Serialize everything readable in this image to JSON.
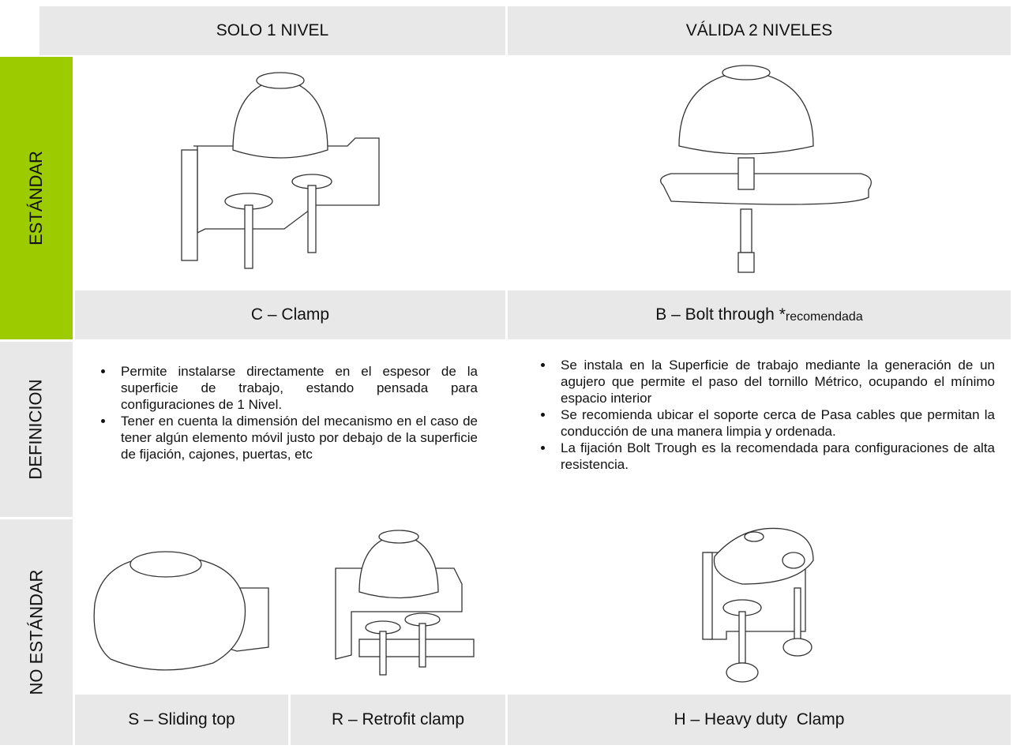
{
  "header": {
    "columns": [
      "SOLO 1 NIVEL",
      "VÁLIDA 2 NIVELES"
    ]
  },
  "rows": [
    {
      "label": "ESTÁNDAR",
      "captions": [
        "C – Clamp",
        "B – Bolt through *"
      ],
      "caption_note": "recomendada"
    },
    {
      "label": "DEFINICION",
      "bullets": [
        [
          "Permite instalarse directamente en el espesor de la superficie de trabajo, estando pensada para configuraciones de 1 Nivel.",
          "Tener en cuenta la dimensión del mecanismo en el caso de tener algún elemento móvil justo por debajo de la superficie de fijación, cajones, puertas, etc"
        ],
        [
          "Se instala en la Superficie de trabajo mediante la generación de un agujero que permite el paso del tornillo Métrico, ocupando el mínimo espacio interior",
          "Se recomienda ubicar el soporte cerca de Pasa cables que permitan la conducción de una manera limpia y ordenada.",
          "La fijación Bolt Trough es la recomendada para configuraciones de alta resistencia."
        ]
      ]
    },
    {
      "label": "NO ESTÁNDAR",
      "captions": [
        "S – Sliding top",
        "R – Retrofit clamp",
        "H – Heavy duty  Clamp"
      ]
    }
  ]
}
